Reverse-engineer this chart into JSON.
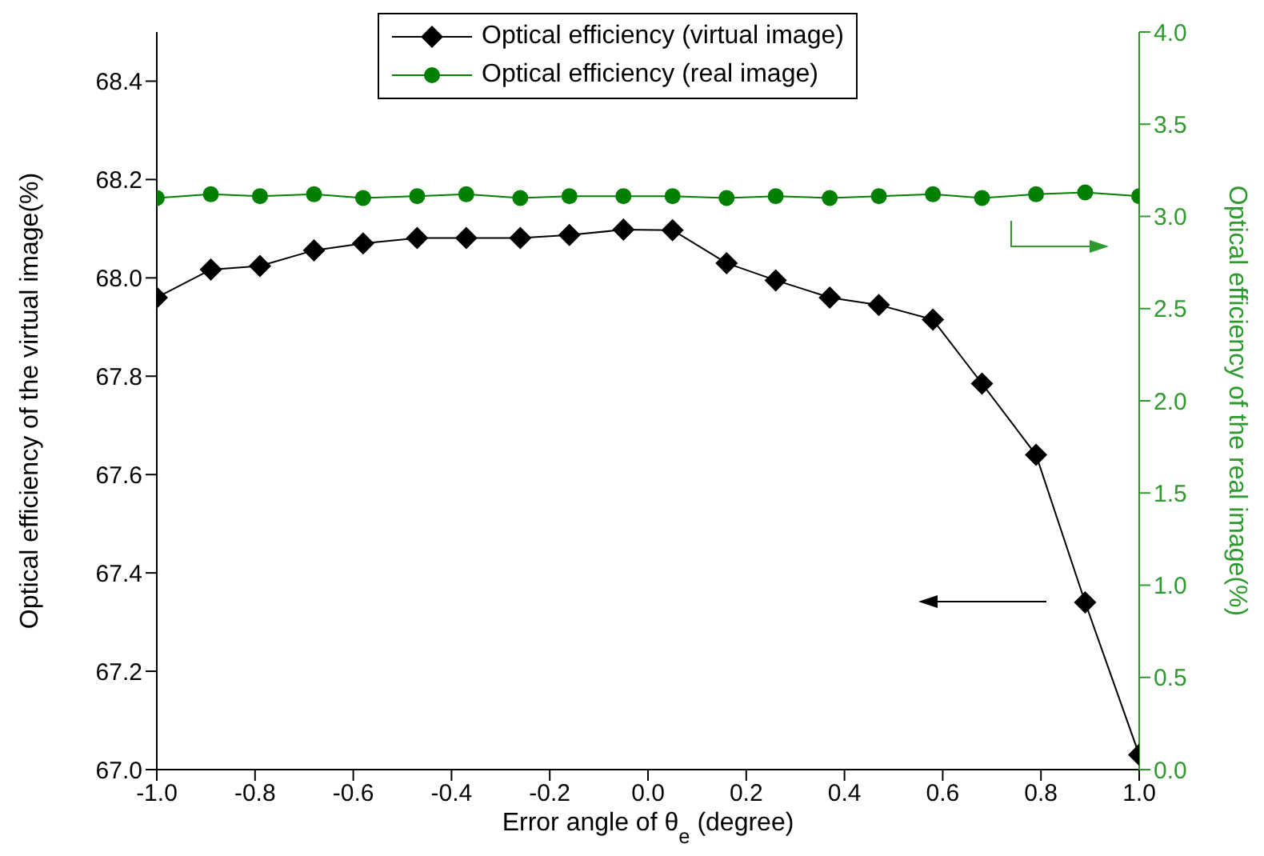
{
  "chart_data": {
    "type": "line",
    "xlabel": "Error angle of θ$_{e}$ (degree)",
    "ylabel": "Optical efficiency of the virtual image(%)",
    "y2label": "Optical efficiency of the real image(%)",
    "x": [
      -1,
      -0.89,
      -0.79,
      -0.68,
      -0.58,
      -0.47,
      -0.37,
      -0.26,
      -0.16,
      -0.05,
      0.05,
      0.16,
      0.26,
      0.37,
      0.47,
      0.58,
      0.68,
      0.79,
      0.89,
      1
    ],
    "series": [
      {
        "name": "Optical efficiency (virtual image)",
        "color": "#000000",
        "marker": "diamond",
        "values": [
          67.96,
          68.017,
          68.024,
          68.056,
          68.07,
          68.081,
          68.081,
          68.081,
          68.087,
          68.098,
          68.097,
          68.03,
          67.995,
          67.96,
          67.945,
          67.915,
          67.785,
          67.64,
          67.34,
          67.03
        ]
      },
      {
        "name": "Optical efficiency (real image)",
        "color": "#008000",
        "marker": "circle",
        "axis": "y2",
        "values": [
          3.1,
          3.12,
          3.11,
          3.12,
          3.1,
          3.11,
          3.12,
          3.1,
          3.11,
          3.11,
          3.11,
          3.1,
          3.11,
          3.1,
          3.11,
          3.12,
          3.1,
          3.12,
          3.13,
          3.11
        ]
      }
    ],
    "xlim": [
      -1,
      1
    ],
    "xticks": [
      {
        "value": -1,
        "label": "-1.0"
      },
      -0.8,
      -0.6,
      -0.4,
      -0.2,
      {
        "value": 0,
        "label": "0.0"
      },
      0.2,
      0.4,
      0.6,
      0.8,
      {
        "value": 1,
        "label": "1.0"
      }
    ],
    "ylim": [
      67,
      68.5
    ],
    "yticks": [
      {
        "value": 67,
        "label": "67.0"
      },
      67.2,
      67.4,
      67.6,
      67.8,
      {
        "value": 68,
        "label": "68.0"
      },
      68.2,
      68.4
    ],
    "y2lim": [
      0,
      4
    ],
    "y2ticks": [
      {
        "value": 0,
        "label": "0.0"
      },
      0.5,
      {
        "value": 1,
        "label": "1.0"
      },
      1.5,
      {
        "value": 2,
        "label": "2.0"
      },
      2.5,
      {
        "value": 3,
        "label": "3.0"
      },
      3.5,
      {
        "value": 4,
        "label": "4.0"
      }
    ],
    "grid": false,
    "legend": "top right",
    "line_style": "solid"
  }
}
